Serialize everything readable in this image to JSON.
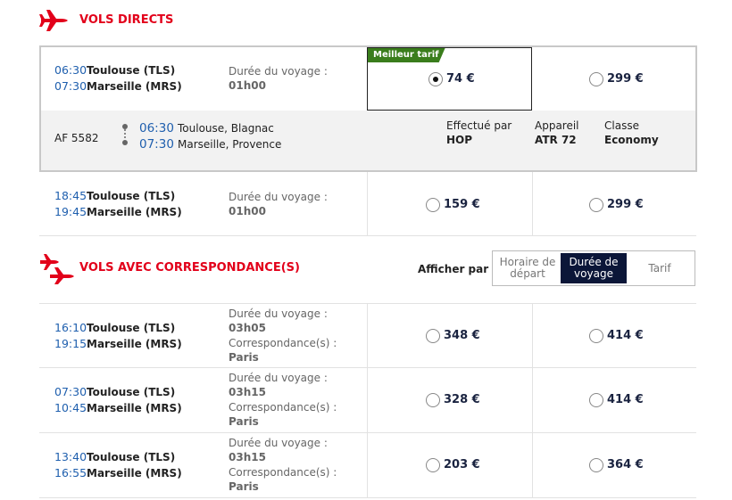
{
  "direct": {
    "title": "VOLS DIRECTS",
    "flights": [
      {
        "dep_time": "06:30",
        "dep": "Toulouse (TLS)",
        "arr_time": "07:30",
        "arr": "Marseille (MRS)",
        "duration_label": "Durée du voyage :",
        "duration": "01h00",
        "badge": "Meilleur tarif",
        "fares": [
          "74 €",
          "299 €"
        ],
        "selected": 0,
        "details": {
          "flight_number": "AF 5582",
          "dep_time": "06:30",
          "dep_airport": "Toulouse, Blagnac",
          "arr_time": "07:30",
          "arr_airport": "Marseille, Provence",
          "operator_label": "Effectué par",
          "operator": "HOP",
          "aircraft_label": "Appareil",
          "aircraft": "ATR 72",
          "class_label": "Classe",
          "class": "Economy"
        }
      },
      {
        "dep_time": "18:45",
        "dep": "Toulouse (TLS)",
        "arr_time": "19:45",
        "arr": "Marseille (MRS)",
        "duration_label": "Durée du voyage :",
        "duration": "01h00",
        "fares": [
          "159 €",
          "299 €"
        ]
      }
    ]
  },
  "connecting": {
    "title": "VOLS AVEC CORRESPONDANCE(S)",
    "sort_label": "Afficher par :",
    "sort_options": [
      "Horaire de départ",
      "Durée de voyage",
      "Tarif"
    ],
    "sort_selected": 1,
    "flights": [
      {
        "dep_time": "16:10",
        "dep": "Toulouse (TLS)",
        "arr_time": "19:15",
        "arr": "Marseille (MRS)",
        "duration_label": "Durée du voyage :",
        "duration": "03h05",
        "connection_label": "Correspondance(s) :",
        "connection": "Paris",
        "fares": [
          "348 €",
          "414 €"
        ]
      },
      {
        "dep_time": "07:30",
        "dep": "Toulouse (TLS)",
        "arr_time": "10:45",
        "arr": "Marseille (MRS)",
        "duration_label": "Durée du voyage :",
        "duration": "03h15",
        "connection_label": "Correspondance(s) :",
        "connection": "Paris",
        "fares": [
          "328 €",
          "414 €"
        ]
      },
      {
        "dep_time": "13:40",
        "dep": "Toulouse (TLS)",
        "arr_time": "16:55",
        "arr": "Marseille (MRS)",
        "duration_label": "Durée du voyage :",
        "duration": "03h15",
        "connection_label": "Correspondance(s) :",
        "connection": "Paris",
        "fares": [
          "203 €",
          "364 €"
        ]
      }
    ]
  }
}
